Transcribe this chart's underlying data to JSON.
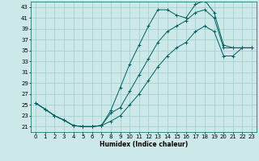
{
  "xlabel": "Humidex (Indice chaleur)",
  "ylabel": "",
  "bg_color": "#cce8e8",
  "grid_color": "#a0cccc",
  "line_color": "#006060",
  "xlim": [
    -0.5,
    23.5
  ],
  "ylim": [
    20.0,
    44.0
  ],
  "yticks": [
    21,
    23,
    25,
    27,
    29,
    31,
    33,
    35,
    37,
    39,
    41,
    43
  ],
  "xticks": [
    0,
    1,
    2,
    3,
    4,
    5,
    6,
    7,
    8,
    9,
    10,
    11,
    12,
    13,
    14,
    15,
    16,
    17,
    18,
    19,
    20,
    21,
    22,
    23
  ],
  "line1_x": [
    0,
    1,
    2,
    3,
    4,
    5,
    6,
    7,
    8,
    9,
    10,
    11,
    12,
    13,
    14,
    15,
    16,
    17,
    18,
    19,
    20,
    21,
    22,
    23
  ],
  "line1_y": [
    25.3,
    24.2,
    23.0,
    22.2,
    21.2,
    21.0,
    21.0,
    21.2,
    24.0,
    28.2,
    32.5,
    36.0,
    39.5,
    42.5,
    42.5,
    41.5,
    41.0,
    43.5,
    44.2,
    42.0,
    36.0,
    35.5,
    35.5,
    35.5
  ],
  "line2_x": [
    0,
    1,
    2,
    3,
    4,
    5,
    6,
    7,
    8,
    9,
    10,
    11,
    12,
    13,
    14,
    15,
    16,
    17,
    18,
    19,
    20,
    21,
    22,
    23
  ],
  "line2_y": [
    25.3,
    24.2,
    23.0,
    22.2,
    21.2,
    21.0,
    21.0,
    21.2,
    23.5,
    24.5,
    27.5,
    30.5,
    33.5,
    36.5,
    38.5,
    39.5,
    40.5,
    42.0,
    42.5,
    41.0,
    35.5,
    35.5,
    35.5,
    35.5
  ],
  "line3_x": [
    0,
    1,
    2,
    3,
    4,
    5,
    6,
    7,
    8,
    9,
    10,
    11,
    12,
    13,
    14,
    15,
    16,
    17,
    18,
    19,
    20,
    21,
    22,
    23
  ],
  "line3_y": [
    25.3,
    24.2,
    23.0,
    22.2,
    21.2,
    21.0,
    21.0,
    21.2,
    22.0,
    23.0,
    25.0,
    27.0,
    29.5,
    32.0,
    34.0,
    35.5,
    36.5,
    38.5,
    39.5,
    38.5,
    34.0,
    34.0,
    35.5,
    35.5
  ]
}
